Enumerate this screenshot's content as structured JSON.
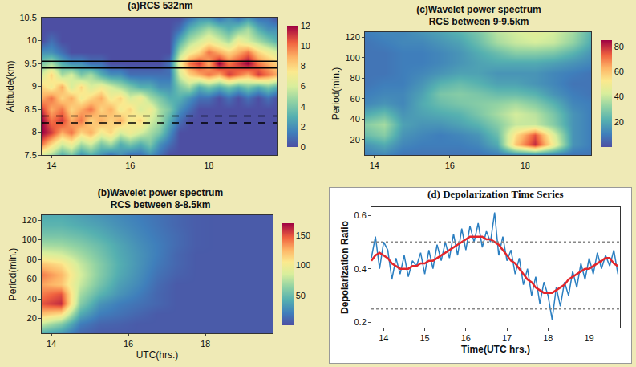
{
  "chart_data": [
    {
      "type": "heatmap",
      "title": "(a)RCS 532nm",
      "ylabel": "Altitude(km)",
      "grid": false,
      "x": [
        13.75,
        14,
        14.25,
        14.5,
        14.75,
        15,
        15.25,
        15.5,
        15.75,
        16,
        16.25,
        16.5,
        16.75,
        17,
        17.25,
        17.5,
        17.75,
        18,
        18.25,
        18.5,
        18.75,
        19,
        19.25,
        19.5,
        19.75
      ],
      "y": [
        7.5,
        7.75,
        8,
        8.25,
        8.5,
        8.75,
        9,
        9.25,
        9.5,
        9.75,
        10,
        10.25,
        10.5
      ],
      "z": [
        [
          6,
          5,
          3,
          4,
          2,
          3,
          2,
          1,
          2,
          1,
          1,
          2,
          1,
          0,
          0,
          0,
          0,
          0,
          0,
          0,
          0,
          0,
          0,
          0,
          0
        ],
        [
          10,
          8,
          6,
          7,
          5,
          6,
          4,
          5,
          3,
          4,
          3,
          4,
          2,
          1,
          0,
          0,
          0,
          0,
          0,
          0,
          0,
          0,
          0,
          0,
          0
        ],
        [
          12,
          11,
          9,
          10,
          8,
          9,
          7,
          8,
          6,
          7,
          6,
          5,
          4,
          2,
          0,
          0,
          0,
          0,
          0,
          0,
          0,
          0,
          0,
          0,
          0
        ],
        [
          12,
          10,
          11,
          9,
          10,
          8,
          9,
          8,
          9,
          7,
          8,
          6,
          5,
          3,
          1,
          0,
          0,
          0,
          0,
          0,
          0,
          0,
          0,
          0,
          0
        ],
        [
          11,
          9,
          10,
          8,
          9,
          10,
          8,
          9,
          7,
          8,
          6,
          7,
          5,
          4,
          2,
          1,
          0,
          0,
          0,
          0,
          0,
          0,
          0,
          0,
          0
        ],
        [
          9,
          10,
          8,
          9,
          7,
          8,
          9,
          7,
          8,
          6,
          7,
          5,
          4,
          3,
          3,
          2,
          1,
          1,
          0,
          1,
          0,
          1,
          0,
          1,
          0
        ],
        [
          8,
          7,
          9,
          6,
          8,
          6,
          7,
          6,
          5,
          4,
          3,
          3,
          2,
          2,
          4,
          5,
          3,
          4,
          3,
          4,
          3,
          4,
          3,
          4,
          3
        ],
        [
          6,
          8,
          5,
          6,
          4,
          5,
          3,
          2,
          2,
          1,
          1,
          1,
          1,
          1,
          6,
          8,
          9,
          10,
          9,
          11,
          10,
          9,
          11,
          10,
          9
        ],
        [
          4,
          5,
          3,
          2,
          2,
          1,
          1,
          0,
          0,
          0,
          0,
          0,
          0,
          1,
          7,
          10,
          11,
          9,
          12,
          10,
          11,
          12,
          10,
          9,
          8
        ],
        [
          2,
          2,
          1,
          0,
          0,
          0,
          0,
          0,
          0,
          0,
          0,
          0,
          0,
          0,
          5,
          7,
          8,
          10,
          9,
          8,
          9,
          10,
          8,
          7,
          6
        ],
        [
          0,
          1,
          0,
          0,
          0,
          0,
          0,
          0,
          0,
          0,
          0,
          0,
          0,
          0,
          3,
          5,
          6,
          7,
          6,
          5,
          7,
          6,
          5,
          4,
          3
        ],
        [
          0,
          0,
          0,
          0,
          0,
          0,
          0,
          0,
          0,
          0,
          0,
          0,
          0,
          0,
          1,
          3,
          4,
          5,
          4,
          3,
          4,
          5,
          3,
          2,
          2
        ],
        [
          0,
          0,
          0,
          0,
          0,
          0,
          0,
          0,
          0,
          0,
          0,
          0,
          0,
          0,
          0,
          1,
          2,
          2,
          1,
          2,
          1,
          2,
          1,
          1,
          0
        ]
      ],
      "xlim": [
        13.75,
        19.75
      ],
      "xticks": [
        14,
        16,
        18
      ],
      "ylim": [
        7.5,
        10.5
      ],
      "yticks": [
        7.5,
        8,
        8.5,
        9,
        9.5,
        10,
        10.5
      ],
      "zlim": [
        0,
        12
      ],
      "zticks": [
        0,
        2,
        4,
        6,
        8,
        10,
        12
      ],
      "hlines": [
        {
          "value": 9.55,
          "line_style": "solid",
          "color": "#000000"
        },
        {
          "value": 9.4,
          "line_style": "solid",
          "color": "#000000"
        },
        {
          "value": 8.35,
          "line_style": "dashed",
          "color": "#000000"
        },
        {
          "value": 8.2,
          "line_style": "dashed",
          "color": "#000000"
        }
      ]
    },
    {
      "type": "heatmap",
      "title": "(b)Wavelet power spectrum",
      "subtitle": "RCS between 8-8.5km",
      "xlabel": "UTC(hrs.)",
      "ylabel": "Period(min.)",
      "grid": false,
      "x": [
        13.75,
        14.25,
        14.75,
        15.25,
        15.75,
        16.25,
        16.75,
        17.25,
        17.75,
        18.25,
        18.75,
        19.25,
        19.75
      ],
      "y": [
        5,
        15,
        25,
        35,
        45,
        55,
        65,
        75,
        85,
        95,
        105,
        115,
        125
      ],
      "z": [
        [
          40,
          30,
          10,
          5,
          5,
          5,
          5,
          5,
          5,
          5,
          5,
          5,
          5
        ],
        [
          80,
          60,
          20,
          10,
          8,
          5,
          5,
          5,
          5,
          5,
          5,
          5,
          5
        ],
        [
          120,
          110,
          40,
          20,
          15,
          10,
          5,
          5,
          5,
          5,
          5,
          5,
          5
        ],
        [
          150,
          160,
          60,
          30,
          20,
          15,
          10,
          5,
          5,
          5,
          5,
          5,
          5
        ],
        [
          140,
          150,
          70,
          45,
          30,
          20,
          10,
          5,
          5,
          5,
          5,
          5,
          5
        ],
        [
          130,
          120,
          80,
          55,
          35,
          25,
          12,
          5,
          5,
          5,
          5,
          5,
          5
        ],
        [
          140,
          125,
          85,
          60,
          40,
          28,
          15,
          8,
          5,
          5,
          5,
          5,
          5
        ],
        [
          120,
          110,
          80,
          60,
          42,
          30,
          18,
          10,
          5,
          5,
          5,
          5,
          5
        ],
        [
          90,
          85,
          70,
          55,
          40,
          30,
          20,
          10,
          5,
          5,
          5,
          5,
          5
        ],
        [
          70,
          68,
          60,
          50,
          38,
          28,
          20,
          12,
          6,
          5,
          5,
          5,
          5
        ],
        [
          55,
          55,
          50,
          42,
          33,
          25,
          18,
          12,
          6,
          5,
          5,
          5,
          5
        ],
        [
          45,
          45,
          40,
          35,
          28,
          22,
          16,
          10,
          6,
          5,
          5,
          5,
          5
        ],
        [
          40,
          40,
          35,
          30,
          25,
          20,
          15,
          10,
          6,
          5,
          5,
          5,
          5
        ]
      ],
      "xlim": [
        13.75,
        19.75
      ],
      "xticks": [
        14,
        16,
        18
      ],
      "ylim": [
        5,
        125
      ],
      "yticks": [
        20,
        40,
        60,
        80,
        100,
        120
      ],
      "zlim": [
        0,
        170
      ],
      "zticks": [
        50,
        100,
        150
      ]
    },
    {
      "type": "heatmap",
      "title": "(c)Wavelet power spectrum",
      "subtitle": "RCS between 9-9.5km",
      "ylabel": "Period(min.)",
      "grid": false,
      "x": [
        13.75,
        14.25,
        14.75,
        15.25,
        15.75,
        16.25,
        16.75,
        17.25,
        17.75,
        18.25,
        18.75,
        19.25,
        19.75
      ],
      "y": [
        5,
        15,
        25,
        35,
        45,
        55,
        65,
        75,
        85,
        95,
        105,
        115,
        125
      ],
      "z": [
        [
          10,
          12,
          8,
          8,
          8,
          8,
          8,
          10,
          12,
          12,
          10,
          8,
          8
        ],
        [
          15,
          20,
          12,
          10,
          10,
          10,
          12,
          20,
          60,
          80,
          50,
          15,
          10
        ],
        [
          25,
          30,
          15,
          12,
          10,
          12,
          15,
          25,
          55,
          75,
          45,
          15,
          10
        ],
        [
          30,
          35,
          18,
          15,
          15,
          18,
          22,
          30,
          40,
          40,
          30,
          15,
          10
        ],
        [
          20,
          25,
          15,
          18,
          20,
          22,
          28,
          35,
          42,
          38,
          28,
          15,
          10
        ],
        [
          12,
          15,
          12,
          20,
          25,
          28,
          30,
          32,
          35,
          30,
          22,
          12,
          10
        ],
        [
          10,
          12,
          12,
          18,
          28,
          30,
          28,
          25,
          25,
          22,
          15,
          10,
          8
        ],
        [
          8,
          10,
          10,
          15,
          22,
          25,
          22,
          18,
          18,
          15,
          12,
          8,
          8
        ],
        [
          8,
          8,
          10,
          12,
          15,
          18,
          18,
          15,
          15,
          15,
          12,
          10,
          8
        ],
        [
          8,
          8,
          10,
          10,
          12,
          15,
          18,
          20,
          20,
          20,
          18,
          15,
          12
        ],
        [
          8,
          8,
          10,
          10,
          12,
          15,
          20,
          25,
          30,
          30,
          28,
          22,
          15
        ],
        [
          8,
          10,
          12,
          12,
          15,
          18,
          25,
          35,
          40,
          42,
          40,
          32,
          20
        ],
        [
          10,
          12,
          12,
          15,
          18,
          22,
          28,
          38,
          42,
          45,
          42,
          35,
          22
        ]
      ],
      "xlim": [
        13.75,
        19.75
      ],
      "xticks": [
        14,
        16,
        18
      ],
      "ylim": [
        5,
        125
      ],
      "yticks": [
        20,
        40,
        60,
        80,
        100,
        120
      ],
      "zlim": [
        0,
        85
      ],
      "zticks": [
        20,
        40,
        60,
        80
      ]
    },
    {
      "type": "line",
      "title": "(d) Depolarization Time Series",
      "xlabel": "Time(UTC hrs.)",
      "ylabel": "Depolarization Ratio",
      "grid": false,
      "x": [
        13.7,
        13.8,
        13.9,
        14,
        14.1,
        14.2,
        14.3,
        14.4,
        14.5,
        14.6,
        14.7,
        14.8,
        14.9,
        15,
        15.1,
        15.2,
        15.3,
        15.4,
        15.5,
        15.6,
        15.7,
        15.8,
        15.9,
        16,
        16.1,
        16.2,
        16.3,
        16.4,
        16.5,
        16.6,
        16.7,
        16.8,
        16.9,
        17,
        17.1,
        17.2,
        17.3,
        17.4,
        17.5,
        17.6,
        17.7,
        17.8,
        17.9,
        18,
        18.1,
        18.2,
        18.3,
        18.4,
        18.5,
        18.6,
        18.7,
        18.8,
        18.9,
        19,
        19.1,
        19.2,
        19.3,
        19.4,
        19.5,
        19.6,
        19.7
      ],
      "series": [
        {
          "color": "#2b7fc1",
          "values": [
            0.44,
            0.52,
            0.4,
            0.5,
            0.47,
            0.36,
            0.44,
            0.38,
            0.45,
            0.37,
            0.43,
            0.41,
            0.46,
            0.38,
            0.47,
            0.4,
            0.49,
            0.43,
            0.5,
            0.44,
            0.53,
            0.45,
            0.55,
            0.47,
            0.56,
            0.5,
            0.57,
            0.48,
            0.54,
            0.5,
            0.61,
            0.45,
            0.52,
            0.43,
            0.47,
            0.38,
            0.44,
            0.34,
            0.4,
            0.3,
            0.37,
            0.27,
            0.35,
            0.3,
            0.21,
            0.33,
            0.26,
            0.35,
            0.3,
            0.39,
            0.33,
            0.42,
            0.36,
            0.44,
            0.38,
            0.46,
            0.4,
            0.45,
            0.41,
            0.47,
            0.38
          ]
        },
        {
          "color": "#e3262b",
          "values": [
            0.43,
            0.45,
            0.46,
            0.45,
            0.44,
            0.42,
            0.41,
            0.4,
            0.4,
            0.4,
            0.41,
            0.41,
            0.42,
            0.42,
            0.43,
            0.43,
            0.44,
            0.45,
            0.46,
            0.47,
            0.48,
            0.49,
            0.5,
            0.51,
            0.52,
            0.52,
            0.52,
            0.52,
            0.51,
            0.51,
            0.5,
            0.49,
            0.47,
            0.45,
            0.43,
            0.42,
            0.4,
            0.38,
            0.36,
            0.35,
            0.33,
            0.32,
            0.31,
            0.31,
            0.31,
            0.32,
            0.33,
            0.34,
            0.36,
            0.37,
            0.38,
            0.39,
            0.4,
            0.4,
            0.41,
            0.42,
            0.43,
            0.44,
            0.44,
            0.42,
            0.41
          ]
        }
      ],
      "xlim": [
        13.7,
        19.75
      ],
      "xticks": [
        14,
        15,
        16,
        17,
        18,
        19
      ],
      "ylim": [
        0.18,
        0.63
      ],
      "yticks": [
        0.2,
        0.4,
        0.6
      ],
      "hlines": [
        {
          "value": 0.5,
          "line_style": "dotted",
          "color": "#888888"
        },
        {
          "value": 0.25,
          "line_style": "dotted",
          "color": "#888888"
        }
      ]
    }
  ]
}
